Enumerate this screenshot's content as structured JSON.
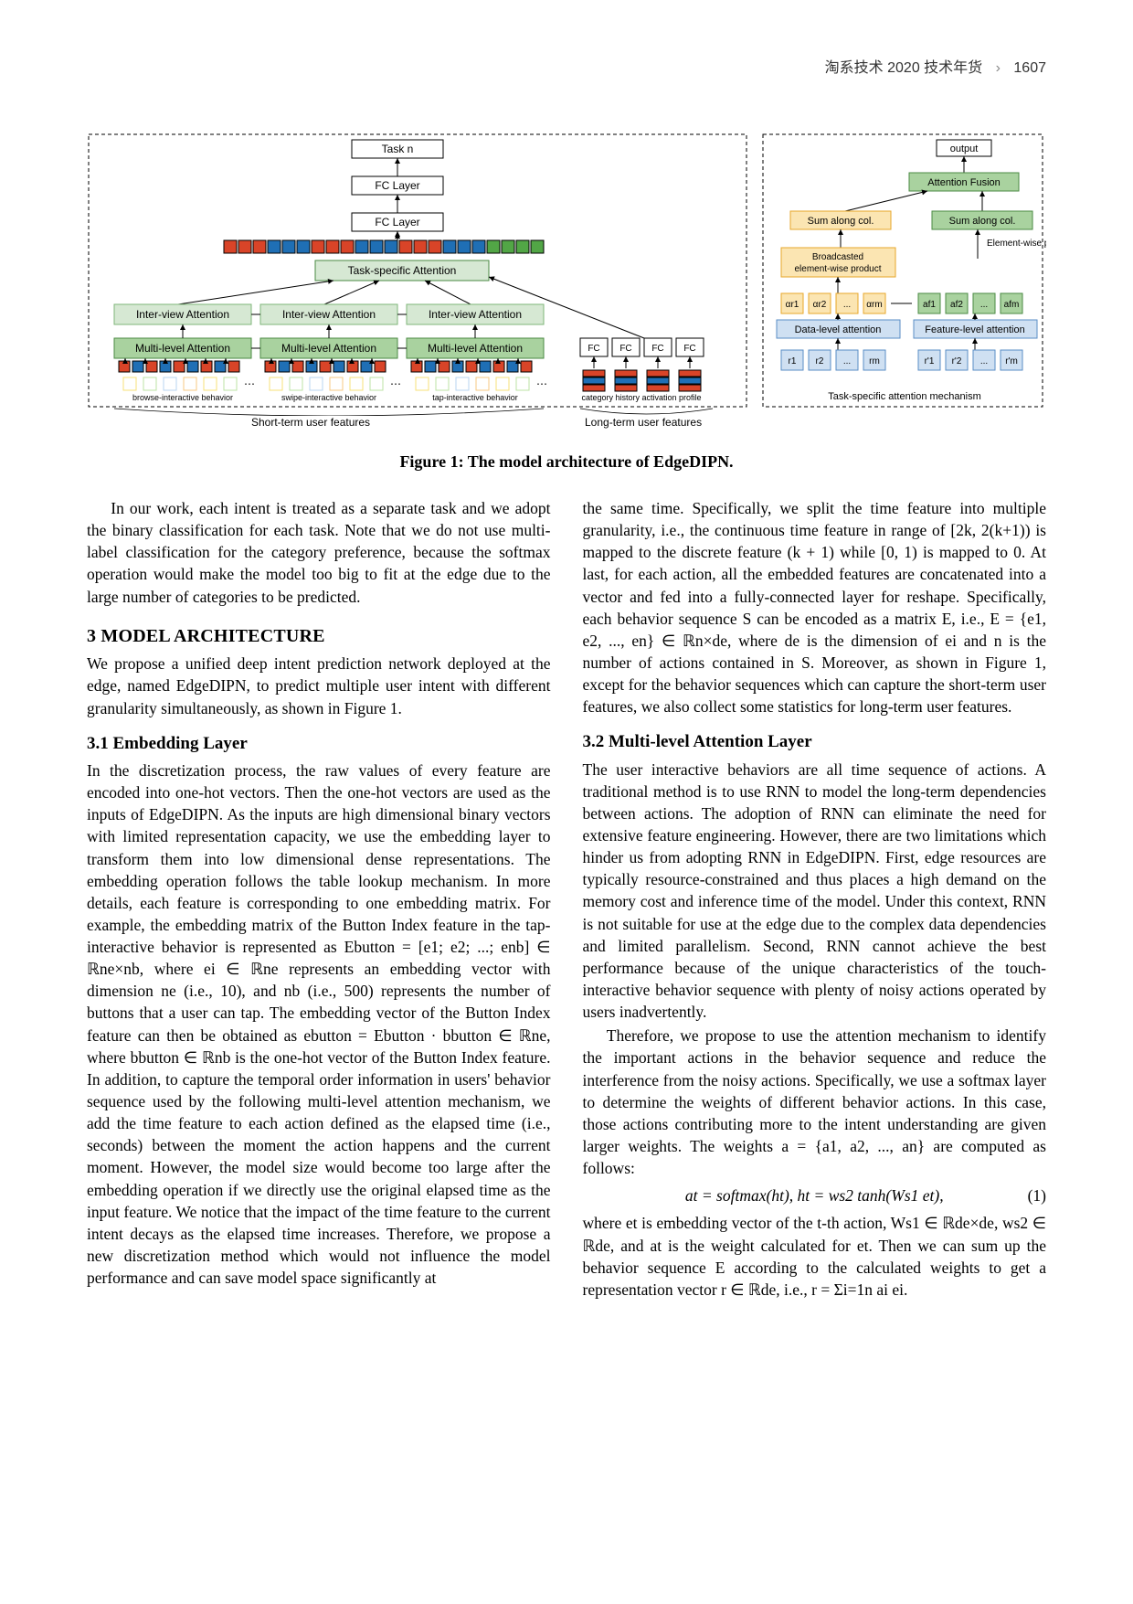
{
  "runningHead": {
    "title": "淘系技术 2020 技术年货",
    "pageNumber": "1607"
  },
  "figure": {
    "caption": "Figure 1: The model architecture of EdgeDIPN.",
    "box": {
      "task_n": "Task n",
      "fc_layer": "FC Layer",
      "task_specific_att": "Task-specific Attention",
      "inter_view_att": "Inter-view Attention",
      "multi_level_att": "Multi-level Attention",
      "output": "output",
      "attention_fusion": "Attention Fusion",
      "sum_along_col1": "Sum along col.",
      "sum_along_col2": "Sum along col.",
      "broadcasted": "Broadcasted",
      "element_wise_prod_small": "element-wise product",
      "element_wise_prod": "Element-wise product",
      "data_level_att": "Data-level attention",
      "feature_level_att": "Feature-level attention",
      "fc_small": "FC",
      "task_specific_mech": "Task-specific attention mechanism"
    },
    "labels": {
      "browse": "browse-interactive behavior",
      "swipe": "swipe-interactive behavior",
      "tap": "tap-interactive behavior",
      "category": "category history activation profile",
      "short_term": "Short-term user features",
      "long_term": "Long-term user features",
      "alpha_r1": "αr1",
      "alpha_r2": "αr2",
      "alpha_rm": "αrm",
      "a_f1": "af1",
      "a_f2": "af2",
      "a_fm": "afm",
      "r1": "r1",
      "r2": "r2",
      "rm": "rm",
      "rp1": "r'1",
      "rp2": "r'2",
      "rpm": "r'm",
      "dots": "..."
    },
    "colors": {
      "border": "#000000",
      "task_box": "#ffffff",
      "att_green_border": "#7fb679",
      "att_green_fill": "#d6e8d3",
      "att_green_deep_border": "#4a8a43",
      "att_green_deep_fill": "#a9d29f",
      "orange_fill": "#fbe5b2",
      "orange_border": "#e7a72b",
      "blue_fill": "#cfe0f2",
      "blue_border": "#5a8ec6",
      "arrow": "#000000",
      "red_block": "#d94428",
      "blue_block": "#1f6fb5",
      "green_block": "#52a646",
      "yellow_small": "#f7e07a",
      "green_small": "#bde3a5",
      "blue_small": "#b9d6f0",
      "orange_small": "#f7c983"
    }
  },
  "left": {
    "para_intro": "In our work, each intent is treated as a separate task and we adopt the binary classification for each task. Note that we do not use multi-label classification for the category preference, because the softmax operation would make the model too big to fit at the edge due to the large number of categories to be predicted.",
    "heading3": "3   MODEL ARCHITECTURE",
    "para3": "We propose a unified deep intent prediction network deployed at the edge, named EdgeDIPN, to predict multiple user intent with different granularity simultaneously, as shown in Figure 1.",
    "heading31": "3.1   Embedding Layer",
    "para31a": "In the discretization process, the raw values of every feature are encoded into one-hot vectors. Then the one-hot vectors are used as the inputs of EdgeDIPN. As the inputs are high dimensional binary vectors with limited representation capacity, we use the embedding layer to transform them into low dimensional dense representations. The embedding operation follows the table lookup mechanism. In more details, each feature is corresponding to one embedding matrix. For example, the embedding matrix of the Button Index feature in the tap-interactive behavior is represented as Ebutton = [e1; e2; ...; enb] ∈ ℝne×nb, where ei ∈ ℝne represents an embedding vector with dimension ne (i.e., 10), and nb (i.e., 500) represents the number of buttons that a user can tap. The embedding vector of the Button Index feature can then be obtained as ebutton = Ebutton · bbutton ∈ ℝne, where bbutton ∈ ℝnb is the one-hot vector of the Button Index feature. In addition, to capture the temporal order information in users' behavior sequence used by the following multi-level attention mechanism, we add the time feature to each action defined as the elapsed time (i.e., seconds) between the moment the action happens and the current moment. However, the model size would become too large after the embedding operation if we directly use the original elapsed time as the input feature. We notice that the impact of the time feature to the current intent decays as the elapsed time increases. Therefore, we propose a new discretization method which would not influence the model performance and can save model space significantly at"
  },
  "right": {
    "para31b": "the same time. Specifically, we split the time feature into multiple granularity, i.e., the continuous time feature in range of [2k, 2(k+1)) is mapped to the discrete feature (k + 1) while [0, 1) is mapped to 0. At last, for each action, all the embedded features are concatenated into a vector and fed into a fully-connected layer for reshape. Specifically, each behavior sequence S can be encoded as a matrix E, i.e., E = {e1, e2, ..., en} ∈ ℝn×de, where de is the dimension of ei and n is the number of actions contained in S. Moreover, as shown in Figure 1, except for the behavior sequences which can capture the short-term user features, we also collect some statistics for long-term user features.",
    "heading32": "3.2   Multi-level Attention Layer",
    "para32a": "The user interactive behaviors are all time sequence of actions. A traditional method is to use RNN to model the long-term dependencies between actions. The adoption of RNN can eliminate the need for extensive feature engineering. However, there are two limitations which hinder us from adopting RNN in EdgeDIPN. First, edge resources are typically resource-constrained and thus places a high demand on the memory cost and inference time of the model. Under this context, RNN is not suitable for use at the edge due to the complex data dependencies and limited parallelism. Second, RNN cannot achieve the best performance because of the unique characteristics of the touch-interactive behavior sequence with plenty of noisy actions operated by users inadvertently.",
    "para32b": "Therefore, we propose to use the attention mechanism to identify the important actions in the behavior sequence and reduce the interference from the noisy actions. Specifically, we use a softmax layer to determine the weights of different behavior actions. In this case, those actions contributing more to the intent understanding are given larger weights. The weights a = {a1, a2, ..., an} are computed as follows:",
    "eq1": "at = softmax(ht),  ht = ws2 tanh(Ws1 et),",
    "eq1_num": "(1)",
    "para32c": "where et is embedding vector of the t-th action, Ws1 ∈ ℝde×de, ws2 ∈ ℝde, and at is the weight calculated for et. Then we can sum up the behavior sequence E according to the calculated weights to get a representation vector r ∈ ℝde, i.e., r = Σi=1n ai ei."
  }
}
